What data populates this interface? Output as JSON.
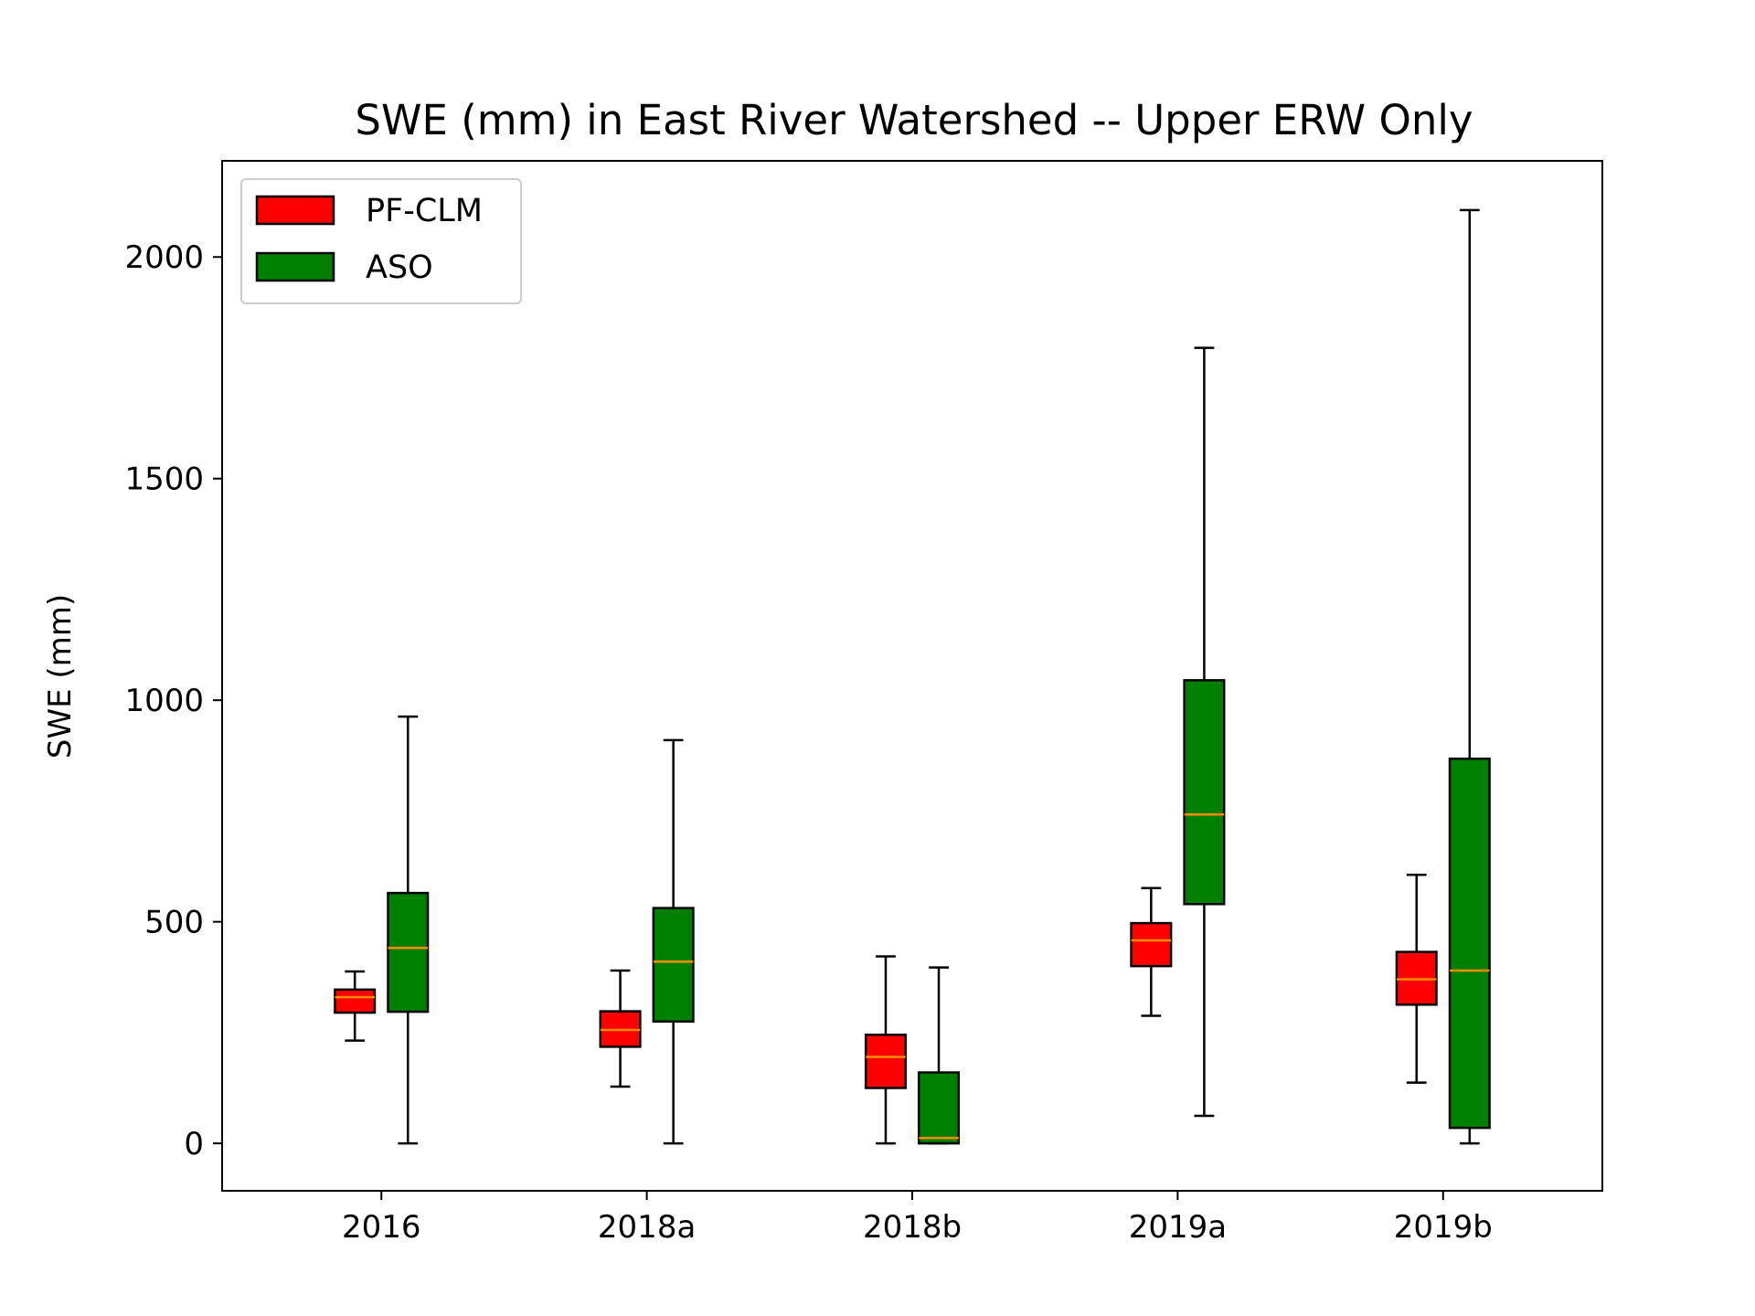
{
  "chart_data": {
    "type": "boxplot",
    "title": "SWE (mm) in East River Watershed -- Upper ERW Only",
    "xlabel": "",
    "ylabel": "SWE (mm)",
    "ylim": [
      -107,
      2217
    ],
    "yticks": [
      0,
      500,
      1000,
      1500,
      2000
    ],
    "categories": [
      "2016",
      "2018a",
      "2018b",
      "2019a",
      "2019b"
    ],
    "legend_position": "upper-left",
    "grid": false,
    "median_color": "#ff8c00",
    "series": [
      {
        "name": "PF-CLM",
        "color": "#ff0000",
        "boxes": [
          {
            "whislo": 232,
            "q1": 295,
            "med": 330,
            "q3": 347,
            "whishi": 388
          },
          {
            "whislo": 128,
            "q1": 218,
            "med": 256,
            "q3": 298,
            "whishi": 390
          },
          {
            "whislo": 0,
            "q1": 125,
            "med": 195,
            "q3": 245,
            "whishi": 422
          },
          {
            "whislo": 288,
            "q1": 400,
            "med": 458,
            "q3": 497,
            "whishi": 576
          },
          {
            "whislo": 137,
            "q1": 313,
            "med": 370,
            "q3": 432,
            "whishi": 606
          }
        ]
      },
      {
        "name": "ASO",
        "color": "#008000",
        "boxes": [
          {
            "whislo": 0,
            "q1": 297,
            "med": 441,
            "q3": 565,
            "whishi": 963
          },
          {
            "whislo": 0,
            "q1": 275,
            "med": 410,
            "q3": 531,
            "whishi": 910
          },
          {
            "whislo": 0,
            "q1": 0,
            "med": 12,
            "q3": 160,
            "whishi": 397
          },
          {
            "whislo": 62,
            "q1": 540,
            "med": 742,
            "q3": 1045,
            "whishi": 1795
          },
          {
            "whislo": 0,
            "q1": 35,
            "med": 390,
            "q3": 868,
            "whishi": 2106
          }
        ]
      }
    ]
  }
}
